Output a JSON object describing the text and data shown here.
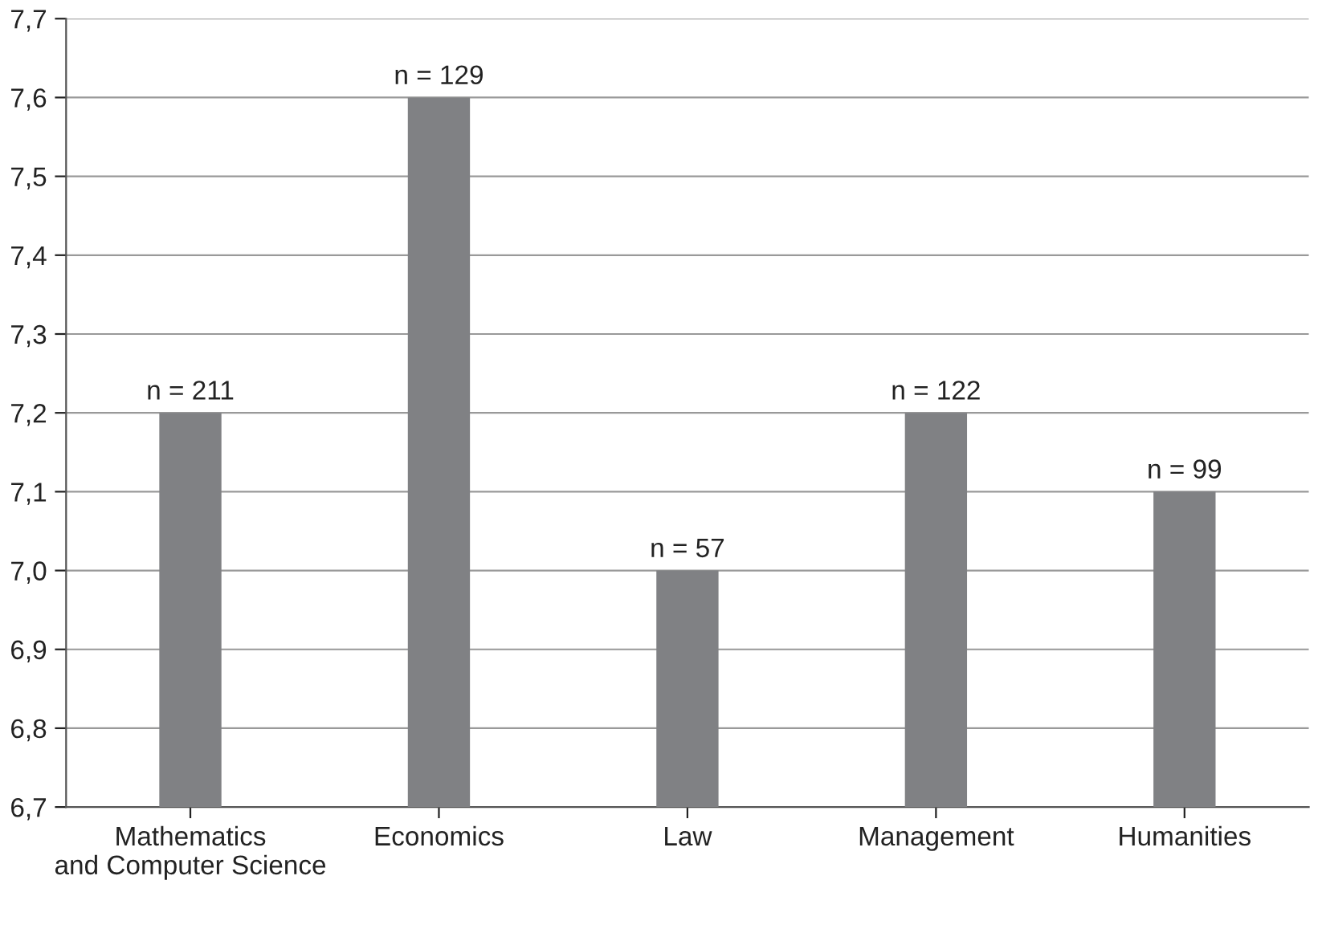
{
  "chart_data": {
    "type": "bar",
    "categories": [
      "Mathematics\nand Computer Science",
      "Economics",
      "Law",
      "Management",
      "Humanities"
    ],
    "values": [
      7.2,
      7.6,
      7.0,
      7.2,
      7.1
    ],
    "annotations": [
      {
        "text": "n = 211",
        "x": "Mathematics\nand Computer Science",
        "y": 7.2
      },
      {
        "text": "n = 129",
        "x": "Economics",
        "y": 7.6
      },
      {
        "text": "n = 57",
        "x": "Law",
        "y": 7.0
      },
      {
        "text": "n = 122",
        "x": "Management",
        "y": 7.2
      },
      {
        "text": "n = 99",
        "x": "Humanities",
        "y": 7.1
      }
    ],
    "color": "#808184",
    "ylim": [
      6.7,
      7.7
    ],
    "yticks": [
      {
        "value": 6.7,
        "label": "6,7"
      },
      {
        "value": 6.8,
        "label": "6,8"
      },
      {
        "value": 6.9,
        "label": "6,9"
      },
      {
        "value": 7.0,
        "label": "7,0"
      },
      {
        "value": 7.1,
        "label": "7,1"
      },
      {
        "value": 7.2,
        "label": "7,2"
      },
      {
        "value": 7.3,
        "label": "7,3"
      },
      {
        "value": 7.4,
        "label": "7,4"
      },
      {
        "value": 7.5,
        "label": "7,5"
      },
      {
        "value": 7.6,
        "label": "7,6"
      },
      {
        "value": 7.7,
        "label": "7,7"
      }
    ],
    "grid": "y"
  }
}
